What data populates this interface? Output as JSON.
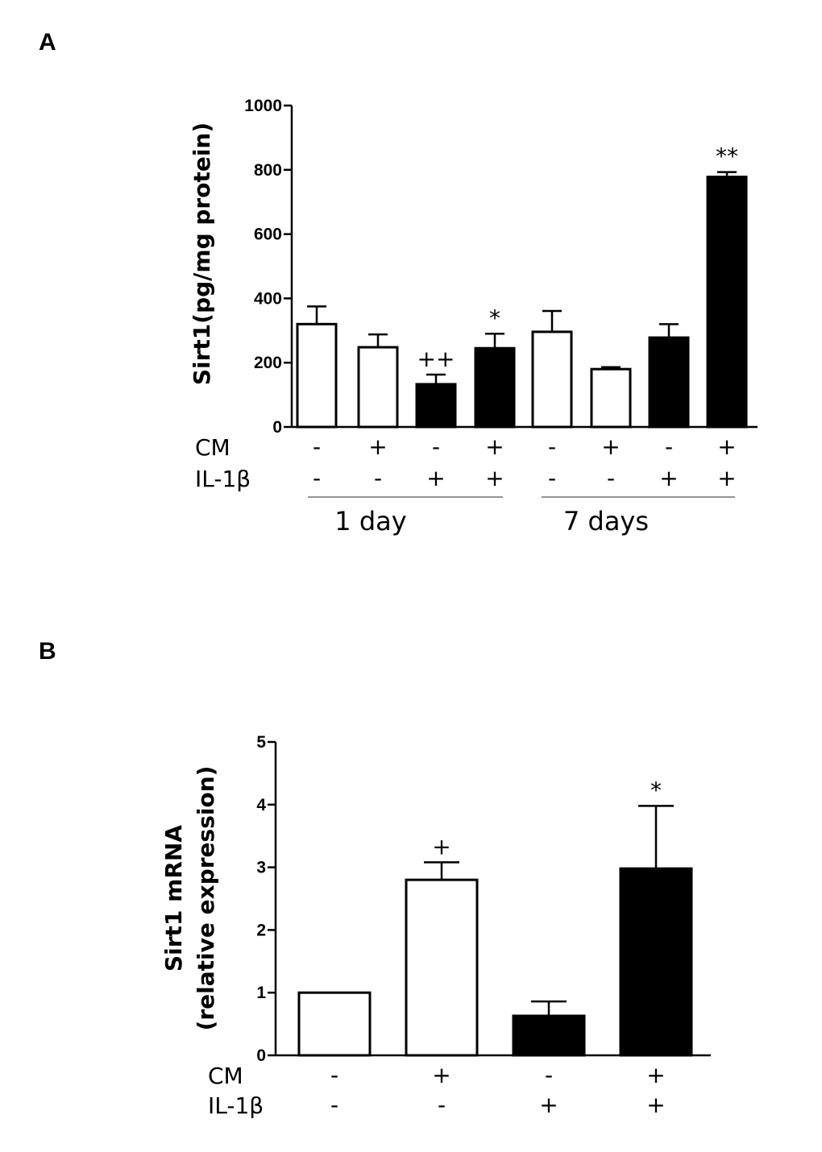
{
  "chart_data": [
    {
      "panel": "A",
      "type": "bar",
      "ylabel": "Sirt1(pg/mg protein)",
      "ylim": [
        0,
        1000
      ],
      "yticks": [
        "0",
        "200",
        "400",
        "600",
        "800",
        "1000"
      ],
      "ytick_values": [
        0,
        200,
        400,
        600,
        800,
        1000
      ],
      "row_labels": [
        "CM",
        "IL-1β"
      ],
      "groups": [
        "1 day",
        "7 days"
      ],
      "bars": [
        {
          "value": 320,
          "error": 55,
          "fill": "white",
          "cm": "-",
          "il": "-",
          "annotation": ""
        },
        {
          "value": 248,
          "error": 40,
          "fill": "white",
          "cm": "+",
          "il": "-",
          "annotation": ""
        },
        {
          "value": 133,
          "error": 30,
          "fill": "black",
          "cm": "-",
          "il": "+",
          "annotation": "++"
        },
        {
          "value": 245,
          "error": 45,
          "fill": "black",
          "cm": "+",
          "il": "+",
          "annotation": "*"
        },
        {
          "value": 296,
          "error": 65,
          "fill": "white",
          "cm": "-",
          "il": "-",
          "annotation": ""
        },
        {
          "value": 180,
          "error": 6,
          "fill": "white",
          "cm": "+",
          "il": "-",
          "annotation": ""
        },
        {
          "value": 278,
          "error": 42,
          "fill": "black",
          "cm": "-",
          "il": "+",
          "annotation": ""
        },
        {
          "value": 778,
          "error": 15,
          "fill": "black",
          "cm": "+",
          "il": "+",
          "annotation": "**"
        }
      ]
    },
    {
      "panel": "B",
      "type": "bar",
      "ylabel": [
        "Sirt1 mRNA",
        "(relative expression)"
      ],
      "ylim": [
        0,
        5
      ],
      "yticks": [
        "0",
        "1",
        "2",
        "3",
        "4",
        "5"
      ],
      "ytick_values": [
        0,
        1,
        2,
        3,
        4,
        5
      ],
      "row_labels": [
        "CM",
        "IL-1β"
      ],
      "bars": [
        {
          "value": 1.0,
          "error": 0,
          "fill": "white",
          "cm": "-",
          "il": "-",
          "annotation": ""
        },
        {
          "value": 2.8,
          "error": 0.28,
          "fill": "white",
          "cm": "+",
          "il": "-",
          "annotation": "+"
        },
        {
          "value": 0.63,
          "error": 0.23,
          "fill": "black",
          "cm": "-",
          "il": "+",
          "annotation": ""
        },
        {
          "value": 2.98,
          "error": 1.0,
          "fill": "black",
          "cm": "+",
          "il": "+",
          "annotation": "*"
        }
      ]
    }
  ]
}
